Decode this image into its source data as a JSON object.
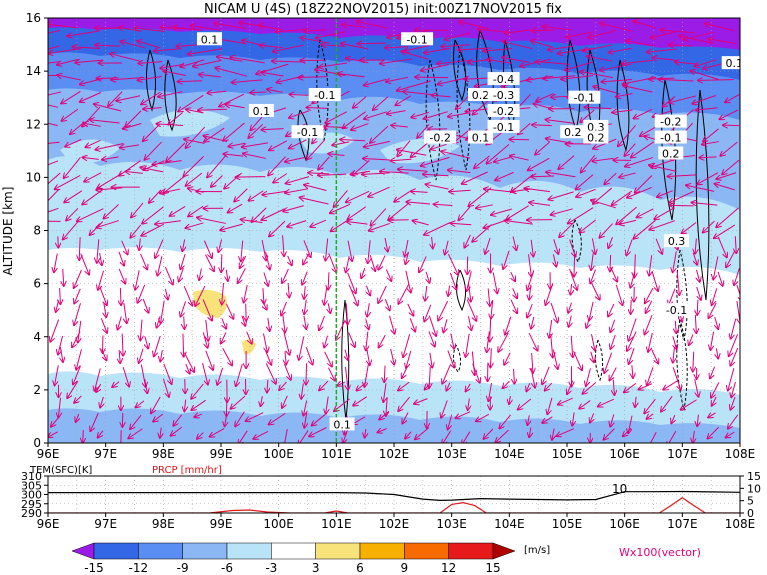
{
  "title": "NICAM U (4S) (18Z22NOV2015) init:00Z17NOV2015 fix",
  "chart_data": [
    {
      "type": "heatmap",
      "title": "NICAM U (4S) (18Z22NOV2015) init:00Z17NOV2015 fix",
      "ylabel": "ALTITUDE [km]",
      "xlabel": "",
      "x_ticks": [
        "96E",
        "97E",
        "98E",
        "99E",
        "100E",
        "101E",
        "102E",
        "103E",
        "104E",
        "105E",
        "106E",
        "107E",
        "108E"
      ],
      "y_ticks": [
        "0",
        "2",
        "4",
        "6",
        "8",
        "10",
        "12",
        "14",
        "16"
      ],
      "xlim": [
        96,
        108
      ],
      "ylim": [
        0,
        16
      ],
      "grid": true,
      "marker_longitude": 101,
      "contour_labels": [
        {
          "text": "0.1",
          "x": 98.8,
          "y": 15.2
        },
        {
          "text": "-0.1",
          "x": 102.4,
          "y": 15.2
        },
        {
          "text": "-0.4",
          "x": 103.9,
          "y": 13.7
        },
        {
          "text": "0.1",
          "x": 107.9,
          "y": 14.3
        },
        {
          "text": "-0.1",
          "x": 100.8,
          "y": 13.1
        },
        {
          "text": "0.2",
          "x": 103.5,
          "y": 13.1
        },
        {
          "text": "-0.3",
          "x": 103.9,
          "y": 13.1
        },
        {
          "text": "-0.1",
          "x": 105.3,
          "y": 13.0
        },
        {
          "text": "0.1",
          "x": 108.4,
          "y": 12.9
        },
        {
          "text": "0.1",
          "x": 99.7,
          "y": 12.5
        },
        {
          "text": "-0.2",
          "x": 103.9,
          "y": 12.5
        },
        {
          "text": "-0.2",
          "x": 106.8,
          "y": 12.1
        },
        {
          "text": "-0.1",
          "x": 103.9,
          "y": 11.9
        },
        {
          "text": "-0.1",
          "x": 100.5,
          "y": 11.7
        },
        {
          "text": "-0.2",
          "x": 102.8,
          "y": 11.5
        },
        {
          "text": "0.1",
          "x": 103.5,
          "y": 11.5
        },
        {
          "text": "0.2",
          "x": 105.1,
          "y": 11.7
        },
        {
          "text": "0.3",
          "x": 105.5,
          "y": 11.9
        },
        {
          "text": "0.2",
          "x": 105.5,
          "y": 11.5
        },
        {
          "text": "-0.1",
          "x": 106.8,
          "y": 11.5
        },
        {
          "text": "0.2",
          "x": 106.8,
          "y": 10.9
        },
        {
          "text": "0.3",
          "x": 106.9,
          "y": 7.6
        },
        {
          "text": "-0.1",
          "x": 106.9,
          "y": 5.0
        },
        {
          "text": "0.1",
          "x": 101.1,
          "y": 0.7
        }
      ]
    },
    {
      "type": "line",
      "x_ticks": [
        "96E",
        "97E",
        "98E",
        "99E",
        "100E",
        "101E",
        "102E",
        "103E",
        "104E",
        "105E",
        "106E",
        "107E",
        "108E"
      ],
      "xlim": [
        96,
        108
      ],
      "grid": true,
      "left_axis": {
        "label": "TEM(SFC)[K]",
        "ticks": [
          "310",
          "305",
          "300",
          "295",
          "290"
        ],
        "range": [
          290,
          310
        ]
      },
      "right_axis": {
        "label": "PRCP [mm/hr]",
        "ticks": [
          "15",
          "10",
          "5",
          "0"
        ],
        "range": [
          0,
          15
        ]
      },
      "series": [
        {
          "name": "TEM(SFC)[K]",
          "color": "#000000",
          "x": [
            96,
            96.5,
            97,
            97.5,
            98,
            98.5,
            99,
            99.5,
            100,
            100.5,
            101,
            101.5,
            102,
            102.5,
            102.8,
            103,
            103.5,
            104,
            104.5,
            105,
            105.5,
            106,
            106.5,
            107,
            107.5,
            108
          ],
          "y": [
            301,
            301,
            301,
            301,
            301,
            301,
            301,
            301,
            301,
            301,
            301,
            300.8,
            300,
            297.5,
            296.8,
            297,
            297.8,
            297.5,
            297.3,
            297.1,
            297.3,
            301.5,
            301.5,
            301.6,
            301.4,
            301.2
          ]
        },
        {
          "name": "PRCP [mm/hr]",
          "color": "#e01818",
          "x": [
            96,
            98.8,
            99.2,
            99.5,
            99.8,
            100.2,
            100.8,
            101.0,
            101.2,
            101.6,
            102.8,
            103.0,
            103.2,
            103.4,
            103.6,
            104,
            106.6,
            106.8,
            107.0,
            107.2,
            107.4,
            108
          ],
          "y": [
            0,
            0,
            1.0,
            1.2,
            0.4,
            0,
            0,
            0.8,
            0,
            0,
            0,
            3.5,
            4.2,
            3.0,
            0,
            0,
            0,
            3.0,
            6.2,
            3.0,
            0,
            0
          ]
        }
      ],
      "annotation": "10"
    }
  ],
  "colorbar": {
    "ticks": [
      "-15",
      "-12",
      "-9",
      "-6",
      "-3",
      "3",
      "6",
      "9",
      "12",
      "15"
    ],
    "unit": "[m/s]",
    "colors": [
      "#9b1ce6",
      "#3467e6",
      "#5a8ef2",
      "#8cb7f5",
      "#b9e3f7",
      "#ffffff",
      "#f7e37a",
      "#f7b000",
      "#f76b00",
      "#e61a1a",
      "#b00000"
    ]
  },
  "vector_label": "Wx100(vector)"
}
